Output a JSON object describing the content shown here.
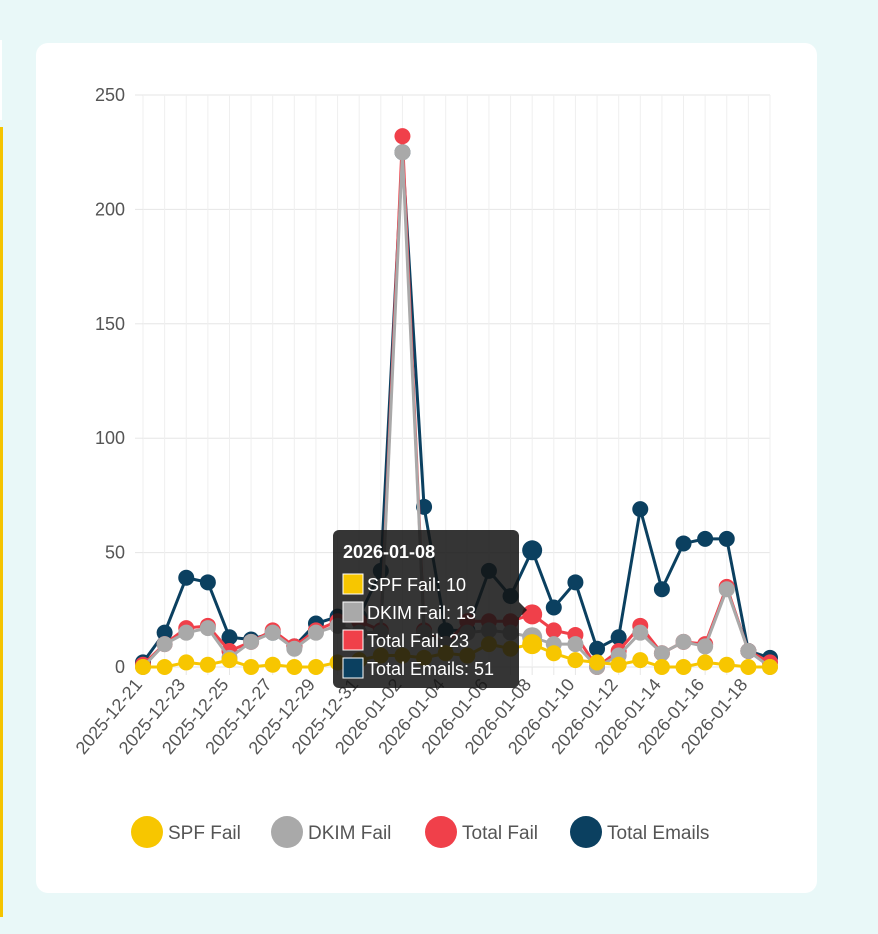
{
  "chart_data": {
    "type": "line",
    "title": "",
    "xlabel": "",
    "ylabel": "",
    "ylim": [
      0,
      250
    ],
    "yticks": [
      0,
      50,
      100,
      150,
      200,
      250
    ],
    "x": [
      "2025-12-21",
      "2025-12-22",
      "2025-12-23",
      "2025-12-24",
      "2025-12-25",
      "2025-12-26",
      "2025-12-27",
      "2025-12-28",
      "2025-12-29",
      "2025-12-30",
      "2025-12-31",
      "2026-01-01",
      "2026-01-02",
      "2026-01-03",
      "2026-01-04",
      "2026-01-05",
      "2026-01-06",
      "2026-01-07",
      "2026-01-08",
      "2026-01-09",
      "2026-01-10",
      "2026-01-11",
      "2026-01-12",
      "2026-01-13",
      "2026-01-14",
      "2026-01-15",
      "2026-01-16",
      "2026-01-17",
      "2026-01-18",
      "2026-01-19"
    ],
    "x_tick_labels": [
      "2025-12-21",
      "2025-12-23",
      "2025-12-25",
      "2025-12-27",
      "2025-12-29",
      "2025-12-31",
      "2026-01-02",
      "2026-01-04",
      "2026-01-06",
      "2026-01-08",
      "2026-01-10",
      "2026-01-12",
      "2026-01-14",
      "2026-01-16",
      "2026-01-18"
    ],
    "grid": true,
    "legend_position": "bottom",
    "series": [
      {
        "name": "SPF Fail",
        "color": "#f7c600",
        "values": [
          0,
          0,
          2,
          1,
          3,
          0,
          1,
          0,
          0,
          2,
          3,
          5,
          5,
          4,
          6,
          5,
          10,
          8,
          10,
          6,
          3,
          2,
          1,
          3,
          0,
          0,
          2,
          1,
          0,
          0
        ]
      },
      {
        "name": "DKIM Fail",
        "color": "#a9a9a9",
        "values": [
          0,
          10,
          15,
          17,
          4,
          11,
          15,
          8,
          15,
          18,
          15,
          15,
          225,
          15,
          10,
          15,
          16,
          15,
          13,
          10,
          10,
          0,
          5,
          15,
          6,
          11,
          9,
          34,
          7,
          0
        ]
      },
      {
        "name": "Total Fail",
        "color": "#f0404a",
        "values": [
          1,
          10,
          17,
          18,
          7,
          11,
          16,
          9,
          16,
          20,
          20,
          16,
          232,
          16,
          10,
          20,
          20,
          20,
          23,
          16,
          14,
          0,
          7,
          18,
          6,
          11,
          10,
          35,
          7,
          2
        ]
      },
      {
        "name": "Total Emails",
        "color": "#0b4060",
        "values": [
          2,
          15,
          39,
          37,
          13,
          12,
          15,
          9,
          19,
          22,
          22,
          42,
          225,
          70,
          16,
          16,
          42,
          31,
          51,
          26,
          37,
          8,
          13,
          69,
          34,
          54,
          56,
          56,
          7,
          4
        ]
      }
    ],
    "tooltip": {
      "title": "2026-01-08",
      "lines": [
        "SPF Fail: 10",
        "DKIM Fail: 13",
        "Total Fail: 23",
        "Total Emails: 51"
      ]
    }
  }
}
